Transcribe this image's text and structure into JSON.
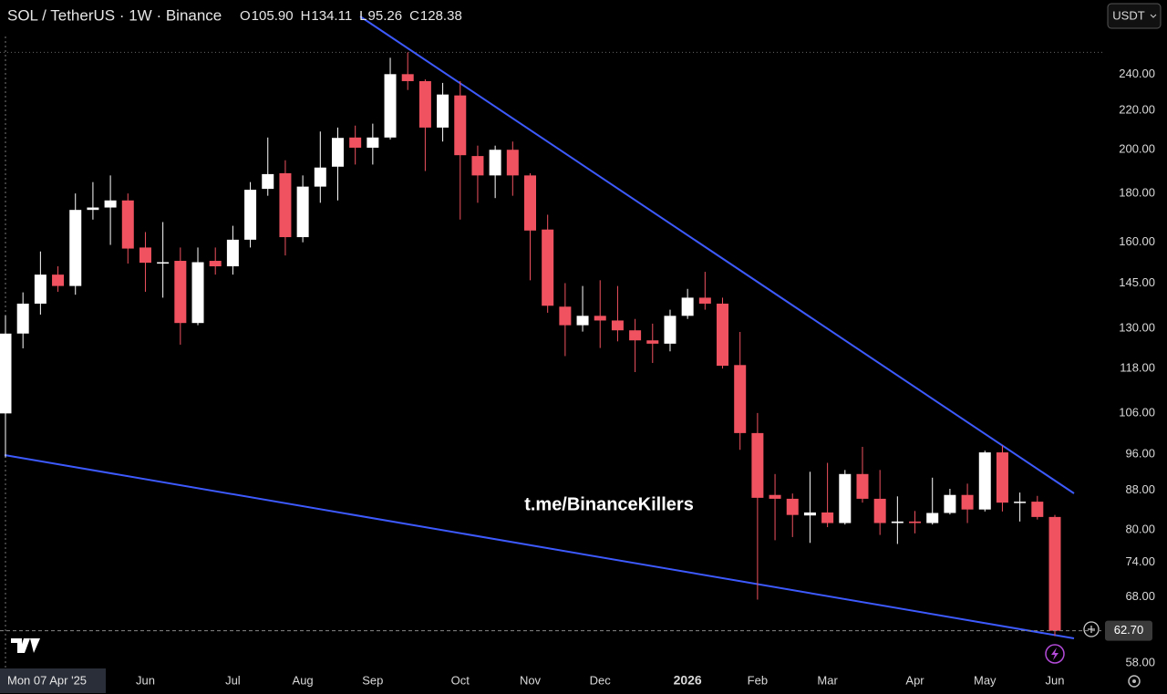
{
  "header": {
    "symbol": "SOL / TetherUS · 1W · Binance",
    "ohlc": [
      {
        "prefix": "O",
        "label": "105.90"
      },
      {
        "prefix": "H",
        "label": "134.11"
      },
      {
        "prefix": "L",
        "label": "95.26"
      },
      {
        "prefix": "C",
        "label": "128.38"
      }
    ],
    "currency_button": "USDT"
  },
  "chart_data": {
    "type": "candlestick",
    "log_scale": true,
    "watermark": "t.me/BinanceKillers",
    "up_color": "#ffffff",
    "down_color": "#f0525f",
    "trendline_color": "#3d5afe",
    "categories": [
      "Mon 07 Apr '25",
      null,
      null,
      null,
      null,
      null,
      null,
      null,
      "Jun",
      null,
      null,
      null,
      null,
      "Jul",
      null,
      null,
      null,
      "Aug",
      null,
      null,
      null,
      "Sep",
      null,
      null,
      null,
      null,
      "Oct",
      null,
      null,
      null,
      "Nov",
      null,
      null,
      null,
      "Dec",
      null,
      null,
      null,
      null,
      "2026",
      null,
      null,
      null,
      "Feb",
      null,
      null,
      null,
      "Mar",
      null,
      null,
      null,
      null,
      "Apr",
      null,
      null,
      null,
      "May",
      null,
      null,
      null,
      "Jun"
    ],
    "open": [
      105.9,
      128.4,
      138,
      148,
      144,
      173,
      174,
      177,
      158,
      152,
      153,
      131.7,
      153,
      151,
      161,
      182,
      189,
      162,
      183,
      192,
      206,
      201,
      206,
      240,
      236,
      211,
      228,
      197,
      188,
      200,
      188,
      165,
      137,
      131,
      134,
      132.5,
      129.4,
      126.3,
      125.3,
      134,
      140,
      138,
      119,
      101,
      87,
      86.2,
      82.8,
      83.4,
      81.3,
      91.5,
      86.2,
      81.3,
      81.6,
      81.3,
      83.3,
      87,
      84,
      96.4,
      85.4,
      85.6,
      82.5
    ],
    "high": [
      134.11,
      141.8,
      156.5,
      151,
      180,
      185,
      188,
      180,
      164,
      168,
      158,
      158,
      158,
      166.5,
      185,
      206,
      195,
      188,
      209,
      211,
      212,
      213,
      249.7,
      253,
      237,
      235,
      236,
      202,
      202,
      204,
      189,
      171,
      145,
      144,
      146,
      144,
      133,
      131.5,
      136,
      143,
      149,
      140,
      128.9,
      106,
      91.5,
      87.3,
      92,
      94,
      92.4,
      97.7,
      92.4,
      86.7,
      83.7,
      90.7,
      88.3,
      89.4,
      96.8,
      98,
      87.5,
      86.8,
      82.9
    ],
    "low": [
      95.26,
      123.9,
      134.4,
      142,
      141,
      169,
      159,
      152,
      142,
      140,
      125,
      131,
      148,
      148,
      158,
      179,
      155,
      160,
      176,
      177,
      193,
      193,
      205,
      231,
      190,
      204,
      169,
      176,
      178,
      179,
      146,
      135,
      121.6,
      129,
      124,
      126,
      117,
      119.6,
      123,
      133,
      136,
      118,
      97,
      67.6,
      78,
      78.6,
      77.5,
      80.5,
      81,
      85.4,
      79,
      77.3,
      79.3,
      81,
      83,
      81.3,
      83.6,
      83.6,
      81.6,
      82,
      61.9
    ],
    "close": [
      128.38,
      138,
      148,
      144,
      173,
      174,
      177,
      157.6,
      152.3,
      152.5,
      131.7,
      152.5,
      151,
      161,
      181.6,
      188.6,
      162,
      183,
      191.6,
      205.8,
      201,
      206,
      240,
      236,
      211,
      228.5,
      197.4,
      188,
      200,
      188,
      164.6,
      137.3,
      131,
      134,
      132.5,
      129.4,
      126.3,
      125.3,
      134,
      140,
      138,
      118.8,
      101,
      86.4,
      86.2,
      82.9,
      83.4,
      81.3,
      91.5,
      86.2,
      81.3,
      81.6,
      81.3,
      83.3,
      87,
      84,
      96.4,
      85.4,
      85.6,
      82.5,
      62.7
    ],
    "ylim": [
      57,
      287
    ],
    "yticks": [
      {
        "value": 240,
        "label": "240.00"
      },
      {
        "value": 220,
        "label": "220.00"
      },
      {
        "value": 200,
        "label": "200.00"
      },
      {
        "value": 180,
        "label": "180.00"
      },
      {
        "value": 160,
        "label": "160.00"
      },
      {
        "value": 145,
        "label": "145.00"
      },
      {
        "value": 130,
        "label": "130.00"
      },
      {
        "value": 118,
        "label": "118.00"
      },
      {
        "value": 106,
        "label": "106.00"
      },
      {
        "value": 96,
        "label": "96.00"
      },
      {
        "value": 88,
        "label": "88.00"
      },
      {
        "value": 80,
        "label": "80.00"
      },
      {
        "value": 74,
        "label": "74.00"
      },
      {
        "value": 68,
        "label": "68.00"
      },
      {
        "value": 58,
        "label": "58.00"
      }
    ],
    "last_price": {
      "value": 62.7,
      "label": "62.70"
    }
  }
}
